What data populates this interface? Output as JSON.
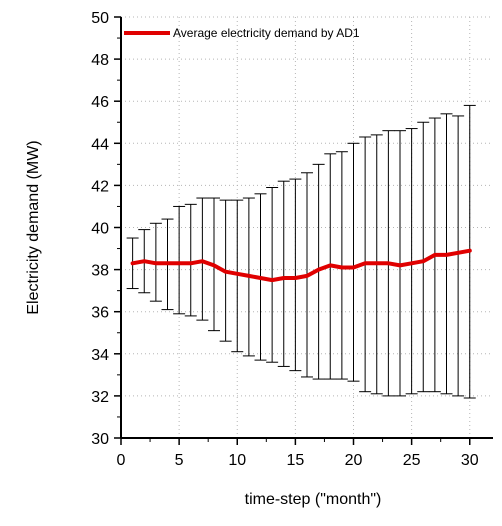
{
  "chart_data": {
    "type": "line",
    "xlabel": "time-step (\"month\")",
    "ylabel": "Electricity demand (MW)",
    "xlim": [
      0,
      32
    ],
    "ylim": [
      30,
      50
    ],
    "xticks": [
      0,
      5,
      10,
      15,
      20,
      25,
      30
    ],
    "yticks": [
      30,
      32,
      34,
      36,
      38,
      40,
      42,
      44,
      46,
      48,
      50
    ],
    "grid": true,
    "legend_position": "top-left",
    "series": [
      {
        "name": "Average electricity demand by AD1",
        "color": "#e00000",
        "x": [
          1,
          2,
          3,
          4,
          5,
          6,
          7,
          8,
          9,
          10,
          11,
          12,
          13,
          14,
          15,
          16,
          17,
          18,
          19,
          20,
          21,
          22,
          23,
          24,
          25,
          26,
          27,
          28,
          29,
          30
        ],
        "values": [
          38.3,
          38.4,
          38.3,
          38.3,
          38.3,
          38.3,
          38.4,
          38.2,
          37.9,
          37.8,
          37.7,
          37.6,
          37.5,
          37.6,
          37.6,
          37.7,
          38.0,
          38.2,
          38.1,
          38.1,
          38.3,
          38.3,
          38.3,
          38.2,
          38.3,
          38.4,
          38.7,
          38.7,
          38.8,
          38.9
        ],
        "error_upper": [
          39.5,
          39.9,
          40.2,
          40.4,
          41.0,
          41.1,
          41.4,
          41.4,
          41.3,
          41.3,
          41.4,
          41.6,
          41.9,
          42.2,
          42.3,
          42.6,
          43.0,
          43.5,
          43.6,
          44.0,
          44.3,
          44.4,
          44.6,
          44.6,
          44.7,
          45.0,
          45.2,
          45.4,
          45.3,
          45.8
        ],
        "error_lower": [
          37.1,
          36.9,
          36.5,
          36.1,
          35.9,
          35.8,
          35.6,
          35.1,
          34.6,
          34.1,
          33.9,
          33.7,
          33.6,
          33.4,
          33.2,
          32.9,
          32.8,
          32.8,
          32.8,
          32.7,
          32.2,
          32.1,
          32.0,
          32.0,
          32.1,
          32.2,
          32.2,
          32.1,
          32.0,
          31.9
        ]
      }
    ]
  }
}
